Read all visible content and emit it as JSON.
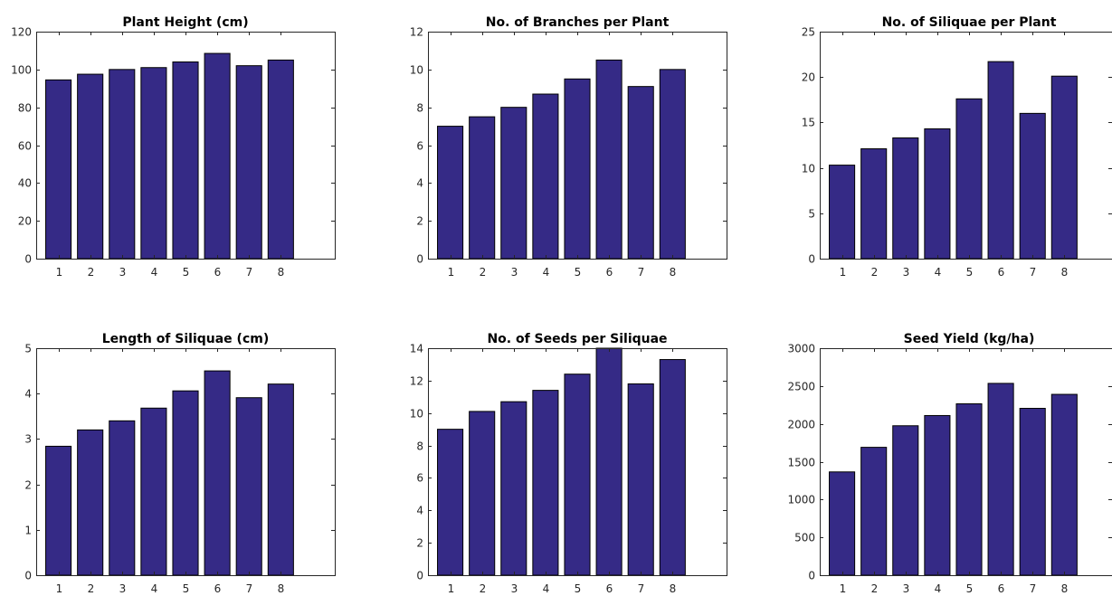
{
  "colors": {
    "bar_fill": "#352a86",
    "axis": "#262626",
    "background": "#ffffff"
  },
  "chart_data": [
    {
      "type": "bar",
      "title": "Plant Height (cm)",
      "categories": [
        "1",
        "2",
        "3",
        "4",
        "5",
        "6",
        "7",
        "8"
      ],
      "values": [
        94.5,
        97.5,
        100,
        101,
        104,
        108.5,
        102,
        105
      ],
      "ylim": [
        0,
        120
      ],
      "xlim": [
        0.3,
        9.7
      ],
      "yticks": [
        "0",
        "20",
        "40",
        "60",
        "80",
        "100",
        "120"
      ],
      "xlabel": "",
      "ylabel": "",
      "grid": false,
      "legend": "none"
    },
    {
      "type": "bar",
      "title": "No. of Branches per Plant",
      "categories": [
        "1",
        "2",
        "3",
        "4",
        "5",
        "6",
        "7",
        "8"
      ],
      "values": [
        7.0,
        7.5,
        8.0,
        8.7,
        9.5,
        10.5,
        9.1,
        10.0
      ],
      "ylim": [
        0,
        12
      ],
      "xlim": [
        0.3,
        9.7
      ],
      "yticks": [
        "0",
        "2",
        "4",
        "6",
        "8",
        "10",
        "12"
      ],
      "xlabel": "",
      "ylabel": "",
      "grid": false,
      "legend": "none"
    },
    {
      "type": "bar",
      "title": "No. of Siliquae per Plant",
      "categories": [
        "1",
        "2",
        "3",
        "4",
        "5",
        "6",
        "7",
        "8"
      ],
      "values": [
        10.3,
        12.1,
        13.3,
        14.3,
        17.6,
        21.7,
        16.0,
        20.1
      ],
      "ylim": [
        0,
        25
      ],
      "xlim": [
        0.3,
        9.7
      ],
      "yticks": [
        "0",
        "5",
        "10",
        "15",
        "20",
        "25"
      ],
      "xlabel": "",
      "ylabel": "",
      "grid": false,
      "legend": "none"
    },
    {
      "type": "bar",
      "title": "Length of Siliquae (cm)",
      "categories": [
        "1",
        "2",
        "3",
        "4",
        "5",
        "6",
        "7",
        "8"
      ],
      "values": [
        2.84,
        3.2,
        3.4,
        3.68,
        4.06,
        4.5,
        3.91,
        4.21
      ],
      "ylim": [
        0,
        5
      ],
      "xlim": [
        0.3,
        9.7
      ],
      "yticks": [
        "0",
        "1",
        "2",
        "3",
        "4",
        "5"
      ],
      "xlabel": "",
      "ylabel": "",
      "grid": false,
      "legend": "none"
    },
    {
      "type": "bar",
      "title": "No. of Seeds per Siliquae",
      "categories": [
        "1",
        "2",
        "3",
        "4",
        "5",
        "6",
        "7",
        "8"
      ],
      "values": [
        9.0,
        10.1,
        10.7,
        11.4,
        12.4,
        14.0,
        11.8,
        13.3
      ],
      "ylim": [
        0,
        14
      ],
      "xlim": [
        0.3,
        9.7
      ],
      "yticks": [
        "0",
        "2",
        "4",
        "6",
        "8",
        "10",
        "12",
        "14"
      ],
      "xlabel": "",
      "ylabel": "",
      "grid": false,
      "legend": "none"
    },
    {
      "type": "bar",
      "title": "Seed Yield (kg/ha)",
      "categories": [
        "1",
        "2",
        "3",
        "4",
        "5",
        "6",
        "7",
        "8"
      ],
      "values": [
        1365,
        1690,
        1975,
        2110,
        2265,
        2535,
        2205,
        2390
      ],
      "ylim": [
        0,
        3000
      ],
      "xlim": [
        0.3,
        9.7
      ],
      "yticks": [
        "0",
        "500",
        "1000",
        "1500",
        "2000",
        "2500",
        "3000"
      ],
      "xlabel": "",
      "ylabel": "",
      "grid": false,
      "legend": "none"
    }
  ]
}
